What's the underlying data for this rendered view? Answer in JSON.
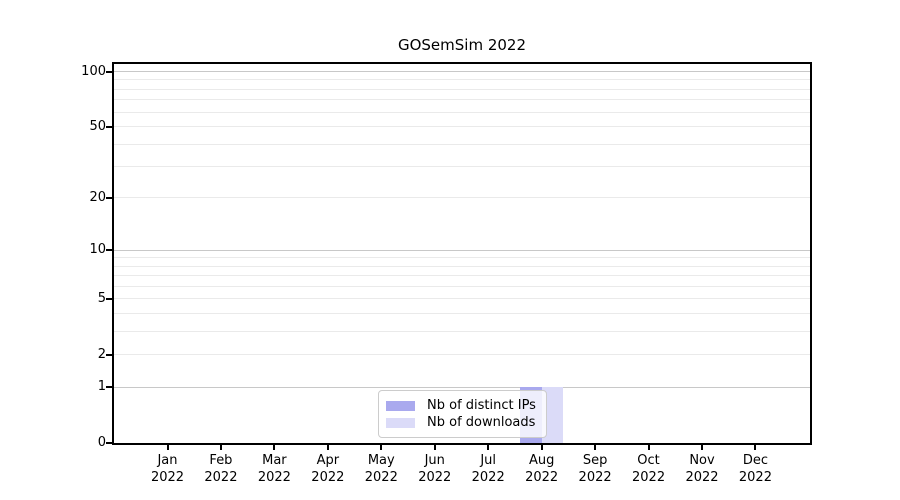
{
  "title": "GOSemSim 2022",
  "chart_data": {
    "type": "bar",
    "title": "GOSemSim 2022",
    "categories": [
      "Jan 2022",
      "Feb 2022",
      "Mar 2022",
      "Apr 2022",
      "May 2022",
      "Jun 2022",
      "Jul 2022",
      "Aug 2022",
      "Sep 2022",
      "Oct 2022",
      "Nov 2022",
      "Dec 2022"
    ],
    "series": [
      {
        "name": "Nb of distinct IPs",
        "color": "#a9a9ee",
        "values": [
          0,
          0,
          0,
          0,
          0,
          0,
          0,
          1,
          0,
          0,
          0,
          0
        ]
      },
      {
        "name": "Nb of downloads",
        "color": "#dbdbf8",
        "values": [
          0,
          0,
          0,
          0,
          0,
          0,
          0,
          1,
          0,
          0,
          0,
          0
        ]
      }
    ],
    "xlabel": "",
    "ylabel": "",
    "yscale": "log1p",
    "ylim": [
      0,
      110
    ],
    "y_ticks": [
      0,
      1,
      2,
      5,
      10,
      20,
      50,
      100
    ],
    "grid": {
      "vertical": false,
      "major": [
        1,
        10,
        100
      ],
      "minor": [
        2,
        3,
        4,
        5,
        6,
        7,
        8,
        9,
        20,
        30,
        40,
        50,
        60,
        70,
        80,
        90
      ]
    },
    "legend_position": "lower center"
  },
  "colors": {
    "spine": "#000000",
    "major_grid": "#c8c8c8",
    "minor_grid": "#eaeaea",
    "legend_border": "#cccccc",
    "text": "#000000"
  }
}
